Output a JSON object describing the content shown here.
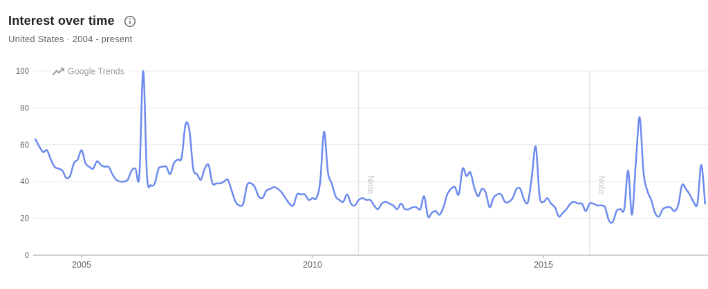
{
  "header": {
    "title": "Interest over time",
    "subtitle": "United States · 2004 - present"
  },
  "watermark": "Google Trends",
  "colors": {
    "line": "#6c8aee",
    "grid": "#e9eaed",
    "axis_line": "#9aa0a6",
    "axis_text": "#5f6368",
    "note_line": "#dadce0",
    "note_text": "#c2c6cb",
    "watermark_text": "#9aa0a6",
    "title_text": "#202124",
    "subtitle_text": "#5f6368"
  },
  "chart_data": {
    "type": "line",
    "title": "Interest over time",
    "region": "United States",
    "time_range": "2004 - present",
    "x_unit": "month",
    "x_start": "2004-01",
    "x_end": "2018-07",
    "x_tick_labels": [
      "2005",
      "2010",
      "2015"
    ],
    "x_tick_years": [
      2005,
      2010,
      2015
    ],
    "y_ticks": [
      0,
      20,
      40,
      60,
      80,
      100
    ],
    "ylim": [
      0,
      100
    ],
    "grid": true,
    "legend": false,
    "notes": [
      {
        "year": 2011,
        "label": "Note"
      },
      {
        "year": 2016,
        "label": "Note"
      }
    ],
    "series": [
      {
        "name": "Interest over time",
        "values_by_year": {
          "2004": [
            63,
            59,
            56,
            57,
            52,
            48,
            47,
            46,
            42,
            43,
            50,
            52
          ],
          "2005": [
            57,
            50,
            48,
            47,
            51,
            49,
            48,
            48,
            44,
            41,
            40,
            40
          ],
          "2006": [
            41,
            46,
            47,
            43,
            100,
            43,
            38,
            39,
            47,
            48,
            48,
            44
          ],
          "2007": [
            50,
            52,
            53,
            71,
            68,
            47,
            44,
            41,
            47,
            49,
            39,
            39
          ],
          "2008": [
            39,
            40,
            41,
            35,
            29,
            27,
            28,
            38,
            39,
            37,
            32,
            31
          ],
          "2009": [
            35,
            36,
            37,
            36,
            34,
            31,
            28,
            27,
            33,
            33,
            33,
            30
          ],
          "2010": [
            31,
            31,
            40,
            67,
            45,
            39,
            32,
            30,
            29,
            33,
            28,
            27
          ],
          "2011": [
            30,
            31,
            30,
            30,
            27,
            25,
            28,
            29,
            28,
            27,
            25,
            28
          ],
          "2012": [
            25,
            25,
            26,
            26,
            25,
            32,
            21,
            23,
            24,
            22,
            26,
            33
          ],
          "2013": [
            36,
            37,
            33,
            47,
            43,
            45,
            37,
            32,
            36,
            34,
            26,
            31
          ],
          "2014": [
            33,
            33,
            29,
            29,
            31,
            36,
            36,
            30,
            29,
            43,
            59,
            32
          ],
          "2015": [
            29,
            31,
            28,
            26,
            21,
            23,
            25,
            28,
            29,
            28,
            28,
            24
          ],
          "2016": [
            28,
            28,
            27,
            27,
            26,
            19,
            18,
            24,
            25,
            25,
            46,
            22
          ],
          "2017": [
            50,
            75,
            45,
            35,
            30,
            23,
            21,
            25,
            26,
            26,
            24,
            27
          ],
          "2018": [
            38,
            36,
            33,
            29,
            28,
            49,
            28
          ]
        }
      }
    ]
  }
}
